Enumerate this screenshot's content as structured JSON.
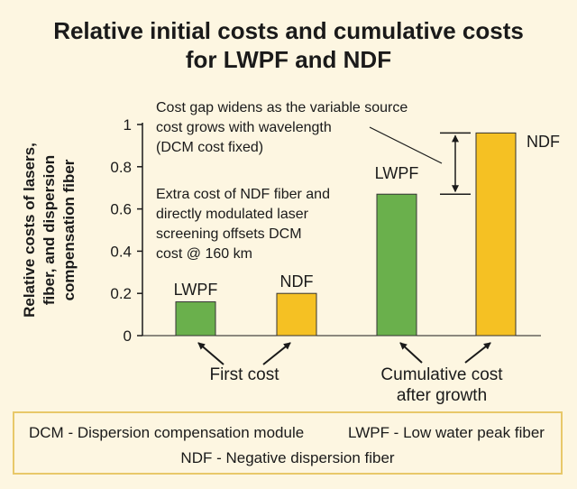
{
  "title_line1": "Relative initial costs and cumulative costs",
  "title_line2": "for LWPF and NDF",
  "chart_data": {
    "type": "bar",
    "ylabel_lines": [
      "Relative costs of lasers,",
      "fiber, and dispersion",
      "compensation fiber"
    ],
    "ylim": [
      0,
      1
    ],
    "yticks": [
      "0",
      "0.2",
      "0.4",
      "0.6",
      "0.8",
      "1"
    ],
    "ytick_values": [
      0,
      0.2,
      0.4,
      0.6,
      0.8,
      1
    ],
    "bars": [
      {
        "group": "First cost",
        "name": "LWPF",
        "value": 0.16,
        "color": "#6ab04c"
      },
      {
        "group": "First cost",
        "name": "NDF",
        "value": 0.2,
        "color": "#f5c123"
      },
      {
        "group": "Cumulative cost after growth",
        "name": "LWPF",
        "value": 0.67,
        "color": "#6ab04c"
      },
      {
        "group": "Cumulative cost after growth",
        "name": "NDF",
        "value": 0.96,
        "color": "#f5c123"
      }
    ],
    "groups": [
      "First cost",
      "Cumulative cost after growth"
    ],
    "group_label_lines": [
      [
        "First cost"
      ],
      [
        "Cumulative cost",
        "after growth"
      ]
    ],
    "annotations": {
      "gap_lines": [
        "Cost gap widens as the variable source",
        "cost grows with wavelength",
        "(DCM cost fixed)"
      ],
      "extra_lines": [
        "Extra cost of NDF fiber and",
        "directly modulated laser",
        "screening offsets DCM",
        "cost @ 160 km"
      ]
    }
  },
  "legend": {
    "dcm": "DCM - Dispersion compensation module",
    "lwpf": "LWPF - Low water peak fiber",
    "ndf": "NDF - Negative dispersion fiber"
  }
}
